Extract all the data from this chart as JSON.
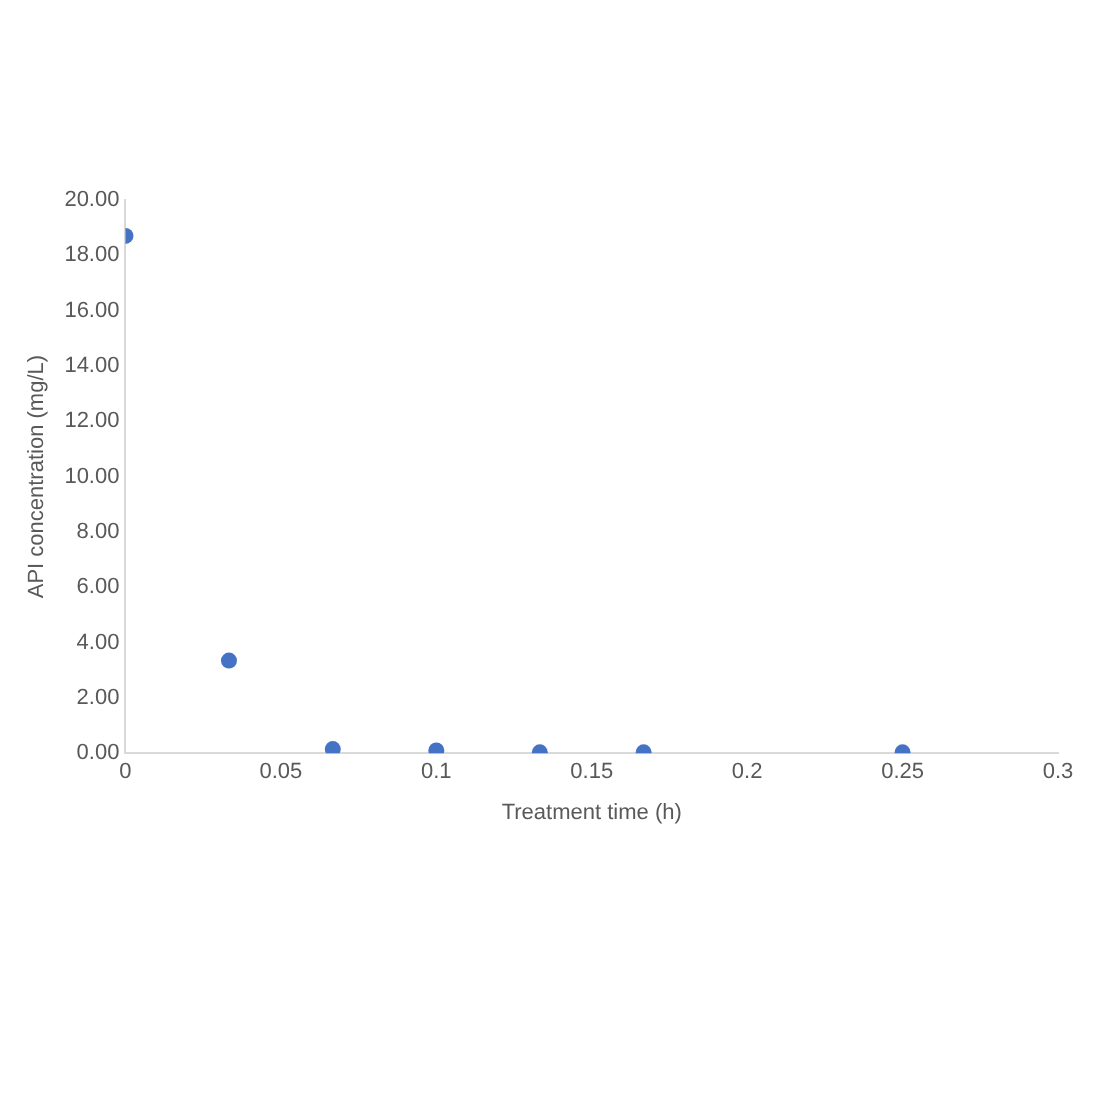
{
  "chart_data": {
    "type": "scatter",
    "xlabel": "Treatment time (h)",
    "ylabel": "API concentration (mg/L)",
    "x": [
      0,
      0.0333,
      0.0667,
      0.1,
      0.1333,
      0.1667,
      0.25
    ],
    "series": [
      {
        "color": "#4472c4",
        "values": [
          18.7,
          3.35,
          0.15,
          0.1,
          0.03,
          0.03,
          0.03
        ]
      }
    ],
    "xlim": [
      0,
      0.3
    ],
    "xticks": [
      0,
      0.05,
      0.1,
      0.15,
      0.2,
      0.25,
      0.3
    ],
    "ylim": [
      0,
      20
    ],
    "yticks": [
      {
        "value": 0,
        "label": "0.00"
      },
      {
        "value": 2,
        "label": "2.00"
      },
      {
        "value": 4,
        "label": "4.00"
      },
      {
        "value": 6,
        "label": "6.00"
      },
      {
        "value": 8,
        "label": "8.00"
      },
      {
        "value": 10,
        "label": "10.00"
      },
      {
        "value": 12,
        "label": "12.00"
      },
      {
        "value": 14,
        "label": "14.00"
      },
      {
        "value": 16,
        "label": "16.00"
      },
      {
        "value": 18,
        "label": "18.00"
      },
      {
        "value": 20,
        "label": "20.00"
      }
    ],
    "grid": false,
    "legend": false,
    "marker": "circle"
  }
}
